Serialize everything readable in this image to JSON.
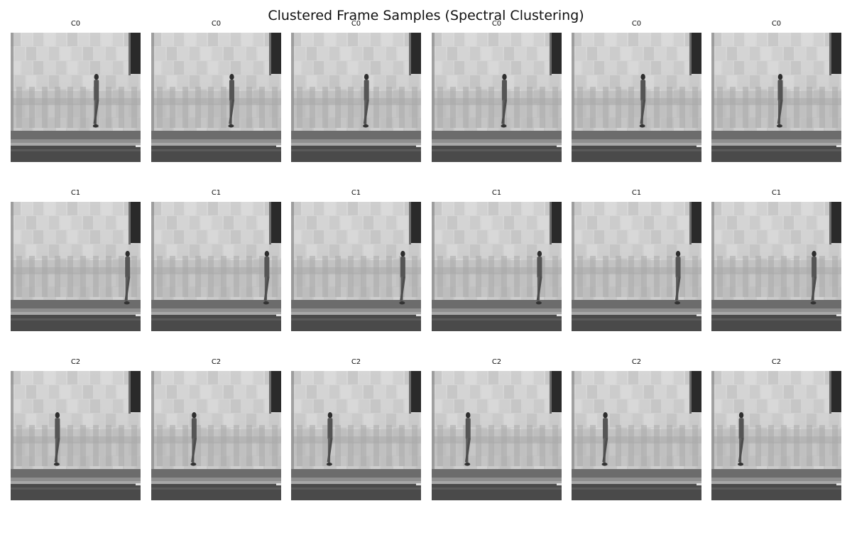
{
  "figure": {
    "title": "Clustered Frame Samples (Spectral Clustering)"
  },
  "rows": [
    {
      "cluster": "C0",
      "panels": [
        "C0",
        "C0",
        "C0",
        "C0",
        "C0",
        "C0"
      ]
    },
    {
      "cluster": "C1",
      "panels": [
        "C1",
        "C1",
        "C1",
        "C1",
        "C1",
        "C1"
      ]
    },
    {
      "cluster": "C2",
      "panels": [
        "C2",
        "C2",
        "C2",
        "C2",
        "C2",
        "C2"
      ]
    }
  ],
  "image": {
    "kind": "grayscale video frame",
    "scene": "person walking on sidewalk in front of tiled wall"
  }
}
